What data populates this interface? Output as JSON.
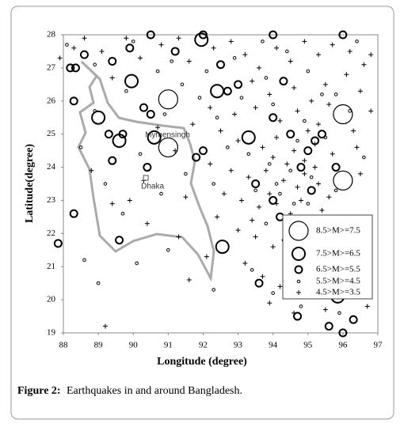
{
  "chart_data": {
    "type": "scatter",
    "xlabel": "Longitude (degree)",
    "ylabel": "Latitude(degree)",
    "xlim": [
      88,
      97
    ],
    "ylim": [
      19,
      28
    ],
    "xticks": [
      88,
      89,
      90,
      91,
      92,
      93,
      94,
      95,
      96,
      97
    ],
    "yticks": [
      19,
      20,
      21,
      22,
      23,
      24,
      25,
      26,
      27,
      28
    ],
    "legend": "lower right",
    "annotations": [
      {
        "text": "Mymensingh",
        "x": 90.34,
        "y": 24.97
      },
      {
        "text": "Dhaka",
        "x": 90.36,
        "y": 23.68
      }
    ],
    "series": [
      {
        "name": "8.5>M>=7.5",
        "color": "#000000",
        "marker": "circle",
        "marker_size": 12,
        "x": [
          91.0,
          91.0,
          96.0,
          96.0
        ],
        "values": [
          26.05,
          24.6,
          23.6,
          25.6
        ]
      },
      {
        "name": "7.5>M>=6.5",
        "color": "#000000",
        "marker": "circle",
        "marker_size": 8,
        "x": [
          89.6,
          89.95,
          91.95,
          92.4,
          93.3,
          90.6,
          95.85,
          92.55,
          89.0
        ],
        "values": [
          24.8,
          26.6,
          27.85,
          26.3,
          24.9,
          24.9,
          20.1,
          21.6,
          25.5
        ]
      },
      {
        "name": "6.5>M>=5.5",
        "color": "#000000",
        "marker": "circle",
        "marker_size": 4.5,
        "x": [
          88.2,
          88.35,
          88.6,
          89.4,
          89.9,
          90.5,
          92.0,
          94.0,
          96.0,
          91.2,
          92.5,
          93.0,
          92.7,
          94.3,
          90.3,
          90.5,
          89.7,
          89.3,
          88.3,
          87.85,
          88.3,
          89.6,
          89.4,
          90.4,
          91.8,
          92.0,
          94.0,
          94.5,
          95.0,
          95.2,
          95.4,
          94.8,
          94.2,
          94.4,
          93.6,
          95.6,
          96.0,
          96.3,
          94.7,
          93.5,
          94.0,
          95.1,
          95.8
        ],
        "values": [
          27.0,
          27.0,
          27.4,
          27.2,
          27.6,
          28.0,
          28.0,
          28.0,
          28.0,
          27.5,
          27.1,
          26.5,
          26.3,
          26.6,
          25.8,
          25.6,
          25.0,
          25.0,
          26.0,
          21.7,
          22.6,
          21.8,
          24.2,
          24.0,
          24.3,
          24.5,
          25.5,
          25.0,
          24.5,
          24.8,
          25.0,
          24.0,
          22.5,
          22.0,
          20.5,
          19.2,
          19.0,
          19.4,
          19.5,
          23.5,
          23.0,
          23.3,
          24.0
        ]
      },
      {
        "name": "5.5>M>=4.5",
        "color": "#000000",
        "marker": "circle",
        "marker_size": 1.8,
        "x": [
          88.1,
          88.9,
          90.0,
          90.7,
          91.4,
          92.1,
          92.9,
          93.7,
          94.4,
          95.0,
          95.8,
          96.4,
          93.1,
          94.0,
          94.9,
          95.5,
          96.6,
          93.3,
          93.9,
          94.5,
          95.1,
          95.8,
          93.5,
          94.2,
          94.6,
          95.3,
          96.0,
          93.8,
          94.3,
          94.9,
          95.6,
          93.4,
          94.0,
          94.8,
          95.9,
          92.3,
          91.0,
          90.1,
          89.0,
          88.6,
          89.7,
          90.8,
          91.5,
          92.3,
          92.7,
          92.4,
          91.9,
          90.9,
          89.8,
          88.9,
          88.5,
          89.2,
          90.2,
          91.1,
          93.8,
          95.4,
          96.2,
          94.7,
          94.1,
          95.0
        ],
        "values": [
          27.7,
          27.1,
          27.8,
          26.9,
          26.5,
          26.9,
          27.3,
          27.8,
          27.5,
          26.9,
          26.2,
          27.8,
          26.1,
          25.9,
          25.4,
          24.9,
          24.3,
          24.4,
          24.1,
          23.9,
          23.7,
          23.3,
          23.3,
          23.2,
          22.9,
          22.5,
          22.0,
          22.3,
          21.8,
          21.5,
          21.1,
          20.9,
          20.2,
          19.8,
          19.6,
          20.3,
          21.5,
          21.1,
          20.5,
          21.2,
          22.6,
          23.2,
          23.8,
          23.5,
          24.6,
          25.5,
          26.1,
          25.6,
          26.3,
          25.7,
          24.6,
          23.5,
          24.4,
          27.2,
          26.7,
          26.2,
          25.7,
          24.8,
          23.5,
          22.9
        ]
      },
      {
        "name": "4.5>M>=3.5",
        "color": "#000000",
        "marker": "plus",
        "marker_size": 3,
        "x": [
          87.9,
          88.3,
          88.6,
          89.1,
          89.4,
          89.8,
          90.2,
          90.8,
          91.3,
          91.6,
          92.3,
          92.8,
          93.2,
          93.6,
          94.1,
          94.5,
          94.9,
          95.3,
          95.7,
          96.2,
          96.6,
          96.8,
          93.4,
          93.9,
          94.6,
          95.1,
          95.5,
          96.1,
          96.5,
          96.8,
          92.2,
          92.9,
          93.5,
          94.2,
          94.7,
          95.3,
          95.6,
          96.3,
          91.7,
          92.5,
          93.0,
          93.7,
          94.1,
          94.6,
          94.9,
          95.2,
          95.7,
          96.4,
          92.2,
          92.8,
          93.3,
          93.8,
          94.3,
          94.7,
          94.9,
          95.3,
          95.6,
          96.5,
          92.6,
          93.1,
          93.6,
          94.1,
          94.5,
          95.0,
          95.4,
          96.2,
          92.4,
          93.0,
          93.5,
          94.0,
          94.4,
          94.8,
          95.1,
          93.2,
          92.1,
          93.7,
          94.2,
          95.0,
          95.5,
          94.6,
          93.9,
          96.7,
          91.6,
          89.2,
          90.4,
          91.3,
          89.9,
          90.3,
          91.2,
          90.7,
          89.4,
          88.8,
          91.5,
          94.0,
          93.9,
          94.4,
          95.0,
          94.8,
          93.4,
          95.2
        ],
        "values": [
          27.3,
          27.6,
          27.9,
          27.5,
          26.7,
          27.9,
          27.3,
          27.7,
          27.9,
          27.2,
          27.6,
          27.8,
          27.4,
          27.0,
          27.6,
          27.2,
          27.8,
          27.4,
          27.7,
          27.5,
          27.1,
          27.4,
          26.6,
          26.2,
          26.4,
          26.0,
          26.5,
          26.8,
          26.3,
          25.7,
          25.8,
          25.6,
          25.8,
          25.4,
          25.7,
          25.3,
          25.9,
          25.1,
          25.3,
          25.1,
          24.8,
          24.6,
          24.9,
          24.5,
          24.2,
          24.7,
          24.4,
          24.6,
          24.1,
          23.9,
          23.7,
          23.9,
          23.6,
          23.4,
          23.8,
          23.5,
          23.1,
          23.8,
          23.2,
          23.0,
          22.8,
          22.9,
          22.6,
          22.3,
          22.7,
          22.4,
          22.5,
          22.1,
          21.9,
          21.6,
          21.2,
          20.9,
          21.4,
          21.1,
          21.3,
          20.7,
          20.4,
          20.1,
          19.7,
          19.6,
          19.9,
          19.8,
          20.6,
          19.2,
          22.3,
          21.9,
          23.0,
          23.6,
          24.5,
          25.2,
          22.9,
          23.9,
          23.1,
          24.3,
          23.2,
          24.1,
          25.1,
          23.0,
          22.4,
          24.0
        ]
      }
    ]
  },
  "caption": {
    "label": "Figure 2:",
    "text": "Earthquakes in and around Bangladesh."
  }
}
